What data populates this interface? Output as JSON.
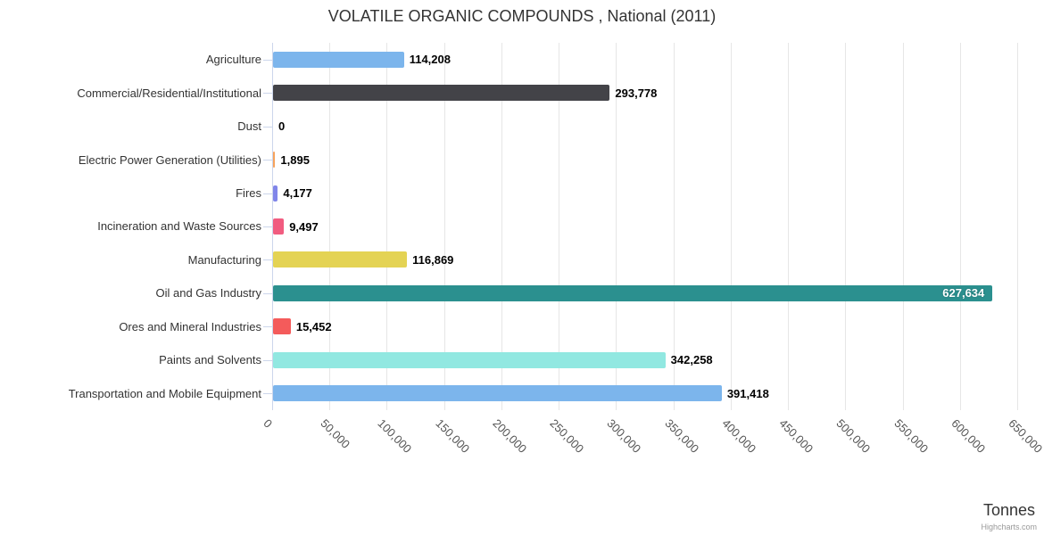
{
  "chart_data": {
    "type": "bar",
    "title": "VOLATILE ORGANIC COMPOUNDS , National (2011)",
    "categories": [
      "Agriculture",
      "Commercial/Residential/Institutional",
      "Dust",
      "Electric Power Generation (Utilities)",
      "Fires",
      "Incineration and Waste Sources",
      "Manufacturing",
      "Oil and Gas Industry",
      "Ores and Mineral Industries",
      "Paints and Solvents",
      "Transportation and Mobile Equipment"
    ],
    "values": [
      114208,
      293778,
      0,
      1895,
      4177,
      9497,
      116869,
      627634,
      15452,
      342258,
      391418
    ],
    "value_labels": [
      "114,208",
      "293,778",
      "0",
      "1,895",
      "4,177",
      "9,497",
      "116,869",
      "627,634",
      "15,452",
      "342,258",
      "391,418"
    ],
    "bar_colors": [
      "#7cb5ec",
      "#434348",
      "#90ed7d",
      "#f7a35c",
      "#8085e9",
      "#f15c80",
      "#e4d354",
      "#2b908f",
      "#f45b5b",
      "#91e8e1",
      "#7cb5ec"
    ],
    "xlabel": "Tonnes",
    "xlim": [
      0,
      650000
    ],
    "tick_interval": 50000,
    "tick_labels": [
      "0",
      "50,000",
      "100,000",
      "150,000",
      "200,000",
      "250,000",
      "300,000",
      "350,000",
      "400,000",
      "450,000",
      "500,000",
      "550,000",
      "600,000",
      "650,000"
    ],
    "grid": "vertical",
    "legend": "none",
    "credits": "Highcharts.com"
  }
}
